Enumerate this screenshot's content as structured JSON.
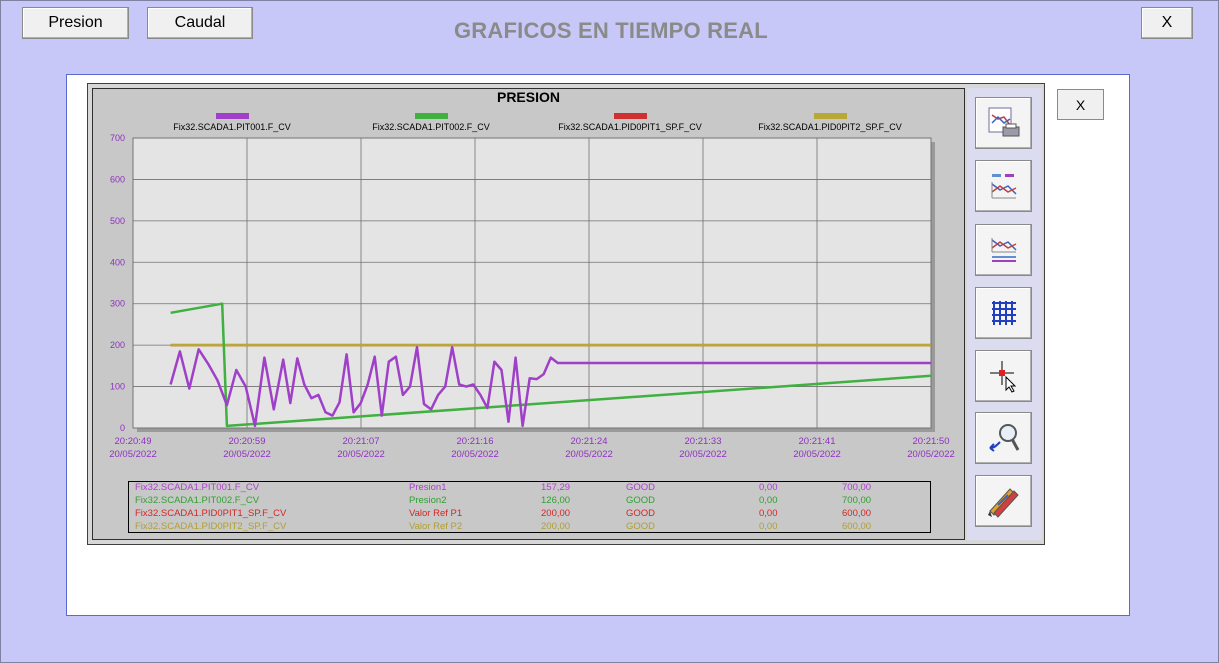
{
  "header": {
    "title": "GRAFICOS EN TIEMPO REAL",
    "btn_presion": "Presion",
    "btn_caudal": "Caudal",
    "btn_close": "X"
  },
  "panel": {
    "close_label": "X"
  },
  "chart_data": {
    "type": "line",
    "title": "PRESION",
    "ylim": [
      0,
      700
    ],
    "yticks": [
      "0",
      "100",
      "200",
      "300",
      "400",
      "500",
      "600",
      "700"
    ],
    "xticks": [
      {
        "time": "20:20:49",
        "date": "20/05/2022"
      },
      {
        "time": "20:20:59",
        "date": "20/05/2022"
      },
      {
        "time": "20:21:07",
        "date": "20/05/2022"
      },
      {
        "time": "20:21:16",
        "date": "20/05/2022"
      },
      {
        "time": "20:21:24",
        "date": "20/05/2022"
      },
      {
        "time": "20:21:33",
        "date": "20/05/2022"
      },
      {
        "time": "20:21:41",
        "date": "20/05/2022"
      },
      {
        "time": "20:21:50",
        "date": "20/05/2022"
      }
    ],
    "grid": true,
    "legend_position": "top",
    "series": [
      {
        "name": "Fix32.SCADA1.PIT001.F_CV",
        "color": "#a040c8",
        "x": [
          0.8,
          1.0,
          1.2,
          1.4,
          1.6,
          1.8,
          2.0,
          2.2,
          2.4,
          2.6,
          2.8,
          3.0,
          3.2,
          3.35,
          3.5,
          3.65,
          3.8,
          3.95,
          4.1,
          4.25,
          4.4,
          4.55,
          4.7,
          4.85,
          5.0,
          5.15,
          5.3,
          5.45,
          5.6,
          5.75,
          5.9,
          6.05,
          6.2,
          6.35,
          6.5,
          6.65,
          6.8,
          6.95,
          7.1,
          7.25,
          7.4,
          7.55,
          7.7,
          7.85,
          8.0,
          8.15,
          8.3,
          8.45,
          8.6,
          8.75,
          8.9,
          9.05,
          9.2,
          9.35,
          9.5,
          9.65,
          9.8,
          9.95,
          10.1,
          10.25,
          10.4,
          10.55,
          10.7,
          10.85,
          11.0,
          11.15,
          11.3,
          11.45,
          11.6,
          11.75,
          11.9,
          12.05,
          12.2,
          12.35,
          12.5,
          12.65,
          12.8,
          12.95,
          13.1,
          13.25,
          13.4,
          13.55,
          13.7,
          13.85,
          14.0,
          14.15,
          14.3,
          14.45,
          14.6,
          14.75,
          14.9,
          15.05,
          15.2,
          15.35,
          15.5,
          15.65,
          15.8,
          15.95,
          16.1,
          16.25,
          16.4,
          16.55,
          16.7,
          16.85,
          17.0
        ],
        "y": [
          105,
          185,
          95,
          190,
          155,
          115,
          55,
          140,
          100,
          5,
          170,
          45,
          165,
          60,
          168,
          105,
          72,
          80,
          38,
          30,
          62,
          178,
          38,
          60,
          105,
          172,
          30,
          160,
          172,
          80,
          100,
          195,
          58,
          45,
          80,
          100,
          195,
          105,
          100,
          105,
          80,
          48,
          160,
          140,
          15,
          170,
          5,
          120,
          118,
          130,
          170,
          157,
          157,
          157,
          157,
          157,
          157,
          157,
          157,
          157,
          157,
          157,
          157,
          157,
          157,
          157,
          157,
          157,
          157,
          157,
          157,
          157,
          157,
          157,
          157,
          157,
          157,
          157,
          157,
          157,
          157,
          157,
          157,
          157,
          157,
          157,
          157,
          157,
          157,
          157,
          157,
          157,
          157,
          157,
          157,
          157,
          157,
          157,
          157,
          157,
          157,
          157,
          157,
          157,
          157
        ]
      },
      {
        "name": "Fix32.SCADA1.PIT002.F_CV",
        "color": "#40b040",
        "x": [
          0.8,
          1.9,
          2.0,
          17.0
        ],
        "y": [
          278,
          300,
          5,
          126
        ]
      },
      {
        "name": "Fix32.SCADA1.PID0PIT1_SP.F_CV",
        "color": "#d03030",
        "x": [
          0.8,
          17.0
        ],
        "y": [
          200,
          200
        ]
      },
      {
        "name": "Fix32.SCADA1.PID0PIT2_SP.F_CV",
        "color": "#b8a838",
        "x": [
          0.8,
          17.0
        ],
        "y": [
          200,
          200
        ]
      }
    ]
  },
  "table": {
    "rows": [
      {
        "tag": "Fix32.SCADA1.PIT001.F_CV",
        "desc": "Presion1",
        "value": "157,29",
        "quality": "GOOD",
        "min": "0,00",
        "max": "700,00",
        "color": "#b040d0"
      },
      {
        "tag": "Fix32.SCADA1.PIT002.F_CV",
        "desc": "Presion2",
        "value": "126,00",
        "quality": "GOOD",
        "min": "0,00",
        "max": "700,00",
        "color": "#30a030"
      },
      {
        "tag": "Fix32.SCADA1.PID0PIT1_SP.F_CV",
        "desc": "Valor Ref P1",
        "value": "200,00",
        "quality": "GOOD",
        "min": "0,00",
        "max": "600,00",
        "color": "#d02828"
      },
      {
        "tag": "Fix32.SCADA1.PID0PIT2_SP.F_CV",
        "desc": "Valor Ref P2",
        "value": "200,00",
        "quality": "GOOD",
        "min": "0,00",
        "max": "600,00",
        "color": "#b0a030"
      }
    ]
  },
  "toolbar": {
    "icons": [
      "print-chart-icon",
      "legend-top-icon",
      "legend-bottom-icon",
      "grid-icon",
      "crosshair-cursor-icon",
      "zoom-icon",
      "edit-pens-icon"
    ]
  }
}
